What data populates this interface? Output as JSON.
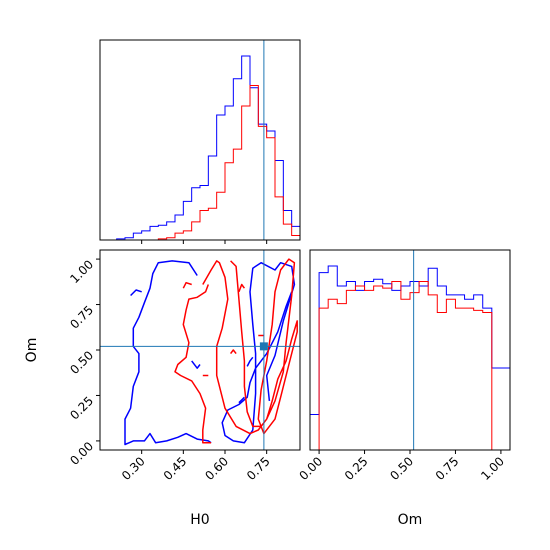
{
  "chart_data": [
    {
      "type": "area",
      "panel": "H0 marginal",
      "xlim": [
        0.15,
        0.87
      ],
      "xticks": [
        0.3,
        0.45,
        0.6,
        0.75
      ],
      "truth_x": 0.74,
      "bin_edges": [
        0.15,
        0.18,
        0.21,
        0.24,
        0.27,
        0.3,
        0.33,
        0.36,
        0.39,
        0.42,
        0.45,
        0.48,
        0.51,
        0.54,
        0.57,
        0.6,
        0.63,
        0.66,
        0.69,
        0.72,
        0.75,
        0.78,
        0.81,
        0.84,
        0.87
      ],
      "series": [
        {
          "color": "#0000ff",
          "values": [
            0,
            0,
            0.005,
            0.01,
            0.03,
            0.04,
            0.06,
            0.065,
            0.08,
            0.11,
            0.17,
            0.23,
            0.24,
            0.37,
            0.55,
            0.59,
            0.71,
            0.81,
            0.67,
            0.51,
            0.48,
            0.35,
            0.13,
            0.06
          ]
        },
        {
          "color": "#ff0000",
          "values": [
            0,
            0,
            0,
            0,
            0,
            0,
            0,
            0.005,
            0.01,
            0.03,
            0.04,
            0.08,
            0.13,
            0.14,
            0.21,
            0.34,
            0.4,
            0.59,
            0.68,
            0.5,
            0.45,
            0.19,
            0.07,
            0.02
          ]
        }
      ]
    },
    {
      "type": "area",
      "panel": "Om marginal",
      "xlim": [
        -0.05,
        1.05
      ],
      "xticks": [
        0.0,
        0.25,
        0.5,
        0.75,
        1.0
      ],
      "xtick_labels": [
        "0.00",
        "0.25",
        "0.50",
        "0.75",
        "1.00"
      ],
      "xlabel": "Om",
      "truth_x": 0.52,
      "bin_edges": [
        -0.05,
        0.0,
        0.05,
        0.1,
        0.15,
        0.2,
        0.25,
        0.3,
        0.35,
        0.4,
        0.45,
        0.5,
        0.55,
        0.6,
        0.65,
        0.7,
        0.75,
        0.8,
        0.85,
        0.9,
        0.95,
        1.0,
        1.05
      ],
      "series": [
        {
          "color": "#0000ff",
          "values": [
            0.16,
            0.8,
            0.83,
            0.74,
            0.76,
            0.72,
            0.76,
            0.77,
            0.75,
            0.72,
            0.74,
            0.76,
            0.74,
            0.82,
            0.74,
            0.7,
            0.7,
            0.68,
            0.7,
            0.64,
            0.37,
            0.37
          ]
        },
        {
          "color": "#ff0000",
          "values": [
            0,
            0.64,
            0.68,
            0.66,
            0.72,
            0.74,
            0.72,
            0.74,
            0.73,
            0.76,
            0.68,
            0.71,
            0.76,
            0.7,
            0.62,
            0.68,
            0.64,
            0.64,
            0.63,
            0.62,
            0,
            0
          ]
        }
      ]
    },
    {
      "type": "scatter",
      "panel": "H0 vs Om contours",
      "xlabel": "H0",
      "ylabel": "Om",
      "xlim": [
        0.15,
        0.87
      ],
      "ylim": [
        -0.05,
        1.05
      ],
      "xticks": [
        0.3,
        0.45,
        0.6,
        0.75
      ],
      "xtick_labels": [
        "0.30",
        "0.45",
        "0.60",
        "0.75"
      ],
      "yticks": [
        0.0,
        0.25,
        0.5,
        0.75,
        1.0
      ],
      "ytick_labels": [
        "0.00",
        "0.25",
        "0.50",
        "0.75",
        "1.00"
      ],
      "truth_x": 0.74,
      "truth_y": 0.52,
      "series": [
        {
          "color": "#0000ff",
          "contours": [
            [
              [
                0.5,
                0.91
              ],
              [
                0.47,
                0.98
              ],
              [
                0.41,
                0.99
              ],
              [
                0.36,
                0.98
              ],
              [
                0.34,
                0.92
              ],
              [
                0.33,
                0.84
              ],
              [
                0.31,
                0.76
              ],
              [
                0.29,
                0.68
              ],
              [
                0.27,
                0.62
              ],
              [
                0.27,
                0.52
              ],
              [
                0.29,
                0.48
              ],
              [
                0.29,
                0.38
              ],
              [
                0.27,
                0.3
              ],
              [
                0.26,
                0.18
              ],
              [
                0.24,
                0.12
              ],
              [
                0.24,
                -0.02
              ],
              [
                0.27,
                0.0
              ],
              [
                0.31,
                0.0
              ],
              [
                0.33,
                0.04
              ],
              [
                0.35,
                -0.01
              ],
              [
                0.39,
                0.0
              ],
              [
                0.43,
                0.02
              ],
              [
                0.46,
                0.04
              ],
              [
                0.5,
                0.01
              ],
              [
                0.54,
                0.0
              ],
              [
                0.55,
                -0.01
              ]
            ],
            [
              [
                0.76,
                0.22
              ],
              [
                0.75,
                0.36
              ],
              [
                0.78,
                0.47
              ],
              [
                0.81,
                0.66
              ],
              [
                0.85,
                0.86
              ],
              [
                0.84,
                0.96
              ],
              [
                0.8,
                0.98
              ],
              [
                0.78,
                0.94
              ],
              [
                0.73,
                0.98
              ],
              [
                0.7,
                0.95
              ],
              [
                0.69,
                0.82
              ],
              [
                0.7,
                0.64
              ],
              [
                0.71,
                0.48
              ],
              [
                0.71,
                0.26
              ],
              [
                0.7,
                0.06
              ],
              [
                0.67,
                -0.01
              ],
              [
                0.63,
                0.0
              ],
              [
                0.6,
                0.03
              ],
              [
                0.59,
                0.1
              ],
              [
                0.61,
                0.17
              ],
              [
                0.65,
                0.2
              ],
              [
                0.68,
                0.24
              ],
              [
                0.69,
                0.32
              ],
              [
                0.71,
                0.4
              ],
              [
                0.75,
                0.48
              ],
              [
                0.79,
                0.6
              ],
              [
                0.82,
                0.74
              ],
              [
                0.84,
                0.82
              ]
            ],
            [
              [
                0.26,
                0.8
              ],
              [
                0.28,
                0.83
              ],
              [
                0.3,
                0.82
              ]
            ],
            [
              [
                0.48,
                0.44
              ],
              [
                0.5,
                0.4
              ],
              [
                0.51,
                0.42
              ]
            ],
            [
              [
                0.68,
                0.41
              ],
              [
                0.69,
                0.44
              ],
              [
                0.7,
                0.46
              ]
            ],
            [
              [
                0.65,
                0.21
              ],
              [
                0.67,
                0.24
              ]
            ]
          ]
        },
        {
          "color": "#ff0000",
          "contours": [
            [
              [
                0.54,
                0.86
              ],
              [
                0.53,
                0.82
              ],
              [
                0.5,
                0.79
              ],
              [
                0.47,
                0.78
              ],
              [
                0.46,
                0.72
              ],
              [
                0.45,
                0.64
              ],
              [
                0.47,
                0.54
              ],
              [
                0.46,
                0.46
              ],
              [
                0.43,
                0.42
              ],
              [
                0.42,
                0.38
              ],
              [
                0.44,
                0.36
              ],
              [
                0.48,
                0.33
              ],
              [
                0.51,
                0.26
              ],
              [
                0.53,
                0.18
              ],
              [
                0.52,
                0.06
              ],
              [
                0.52,
                -0.01
              ],
              [
                0.55,
                -0.01
              ]
            ],
            [
              [
                0.52,
                0.86
              ],
              [
                0.55,
                0.94
              ],
              [
                0.57,
                0.99
              ],
              [
                0.58,
                0.98
              ],
              [
                0.6,
                0.9
              ],
              [
                0.61,
                0.78
              ],
              [
                0.59,
                0.62
              ],
              [
                0.57,
                0.52
              ],
              [
                0.57,
                0.36
              ],
              [
                0.6,
                0.18
              ],
              [
                0.64,
                0.08
              ],
              [
                0.69,
                0.04
              ],
              [
                0.72,
                0.06
              ],
              [
                0.75,
                0.12
              ],
              [
                0.78,
                0.22
              ],
              [
                0.81,
                0.38
              ],
              [
                0.82,
                0.54
              ],
              [
                0.84,
                0.8
              ],
              [
                0.85,
                0.98
              ],
              [
                0.83,
                1.0
              ],
              [
                0.8,
                0.94
              ],
              [
                0.78,
                0.82
              ],
              [
                0.77,
                0.64
              ],
              [
                0.75,
                0.44
              ],
              [
                0.73,
                0.28
              ],
              [
                0.72,
                0.12
              ],
              [
                0.74,
                0.04
              ],
              [
                0.78,
                0.12
              ],
              [
                0.8,
                0.24
              ],
              [
                0.83,
                0.42
              ],
              [
                0.86,
                0.6
              ],
              [
                0.86,
                0.66
              ],
              [
                0.84,
                0.56
              ],
              [
                0.82,
                0.44
              ],
              [
                0.79,
                0.34
              ],
              [
                0.77,
                0.22
              ],
              [
                0.75,
                0.12
              ],
              [
                0.73,
                0.08
              ],
              [
                0.7,
                0.08
              ],
              [
                0.68,
                0.16
              ],
              [
                0.67,
                0.3
              ],
              [
                0.67,
                0.44
              ],
              [
                0.66,
                0.6
              ],
              [
                0.65,
                0.78
              ],
              [
                0.64,
                0.96
              ],
              [
                0.62,
                0.99
              ]
            ],
            [
              [
                0.45,
                0.84
              ],
              [
                0.46,
                0.87
              ],
              [
                0.48,
                0.86
              ]
            ],
            [
              [
                0.65,
                0.82
              ],
              [
                0.66,
                0.86
              ],
              [
                0.67,
                0.84
              ]
            ],
            [
              [
                0.72,
                0.58
              ],
              [
                0.74,
                0.58
              ]
            ],
            [
              [
                0.62,
                0.48
              ],
              [
                0.63,
                0.5
              ],
              [
                0.64,
                0.48
              ]
            ],
            [
              [
                0.52,
                0.36
              ],
              [
                0.54,
                0.36
              ]
            ]
          ]
        }
      ]
    }
  ]
}
